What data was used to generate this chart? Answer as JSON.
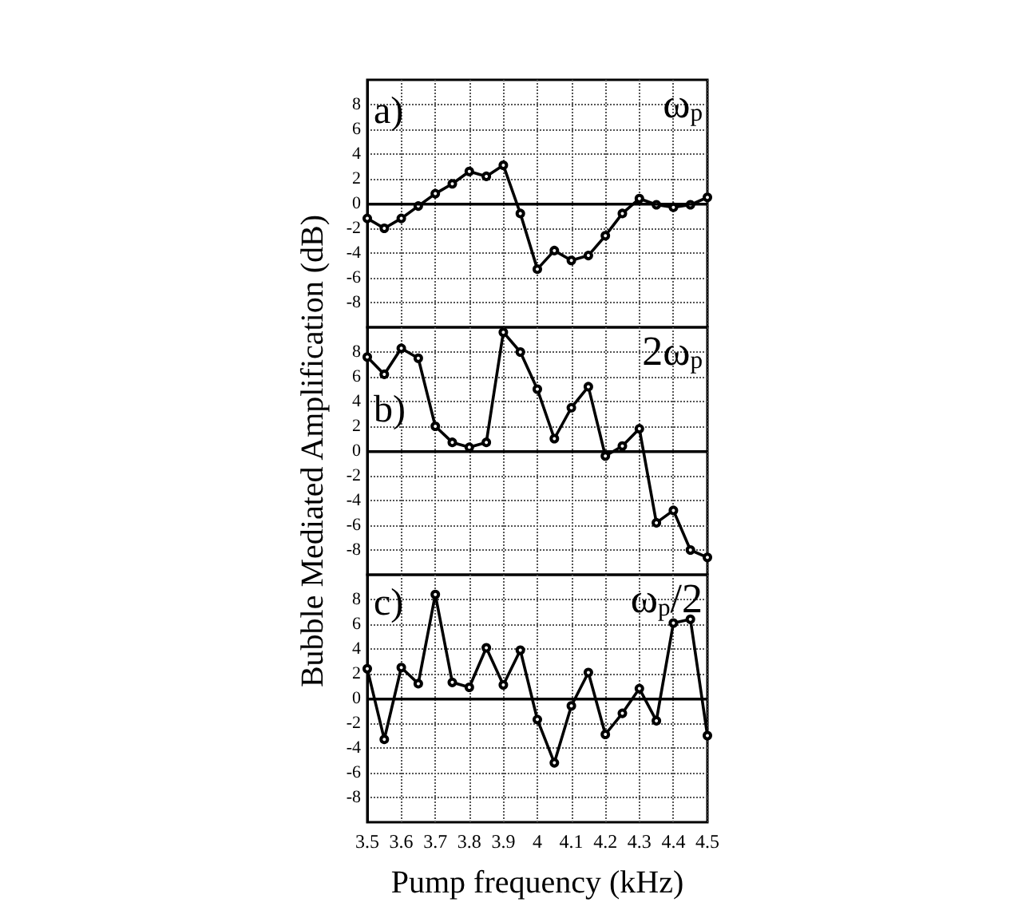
{
  "chart_data": [
    {
      "type": "line",
      "annotations": [
        "a)",
        "ω$_{p}$"
      ],
      "x": [
        3.5,
        3.55,
        3.6,
        3.65,
        3.7,
        3.75,
        3.8,
        3.85,
        3.9,
        3.95,
        4.0,
        4.05,
        4.1,
        4.15,
        4.2,
        4.25,
        4.3,
        4.35,
        4.4,
        4.45,
        4.5
      ],
      "series": [
        {
          "color": "#000000",
          "values": [
            -1.2,
            -2.0,
            -1.2,
            -0.2,
            0.8,
            1.6,
            2.6,
            2.2,
            3.1,
            -0.8,
            -5.3,
            -3.8,
            -4.6,
            -4.2,
            -2.6,
            -0.8,
            0.4,
            -0.1,
            -0.3,
            -0.1,
            0.5
          ]
        }
      ],
      "xlim": [
        3.5,
        4.5
      ],
      "xticks": [
        3.5,
        3.6,
        3.7,
        3.8,
        3.9,
        4.0,
        4.1,
        4.2,
        4.3,
        4.4,
        4.5
      ],
      "ylim": [
        -10,
        10
      ],
      "yticks": [
        -8,
        -6,
        -4,
        -2,
        0,
        2,
        4,
        6,
        8
      ],
      "tick_labels": "y",
      "grid": true,
      "marker": "circle",
      "line_style": "solid",
      "ref_lines": [
        {
          "axis": "y",
          "value": 0,
          "color": "#000000"
        }
      ]
    },
    {
      "type": "line",
      "ylabel": "Bubble Mediated Amplification (dB)",
      "annotations": [
        "b)",
        "2ω$_{p}$"
      ],
      "x": [
        3.5,
        3.55,
        3.6,
        3.65,
        3.7,
        3.75,
        3.8,
        3.85,
        3.9,
        3.95,
        4.0,
        4.05,
        4.1,
        4.15,
        4.2,
        4.25,
        4.3,
        4.35,
        4.4,
        4.45,
        4.5
      ],
      "series": [
        {
          "color": "#000000",
          "values": [
            7.6,
            6.2,
            8.3,
            7.5,
            2.0,
            0.7,
            0.3,
            0.7,
            9.6,
            8.0,
            5.0,
            1.0,
            3.5,
            5.2,
            -0.4,
            0.4,
            1.8,
            -5.8,
            -4.8,
            -8.0,
            -8.6
          ]
        }
      ],
      "xlim": [
        3.5,
        4.5
      ],
      "xticks": [
        3.5,
        3.6,
        3.7,
        3.8,
        3.9,
        4.0,
        4.1,
        4.2,
        4.3,
        4.4,
        4.5
      ],
      "ylim": [
        -10,
        10
      ],
      "yticks": [
        -8,
        -6,
        -4,
        -2,
        0,
        2,
        4,
        6,
        8
      ],
      "tick_labels": "y",
      "grid": true,
      "marker": "circle",
      "line_style": "solid",
      "ref_lines": [
        {
          "axis": "y",
          "value": 0,
          "color": "#000000"
        }
      ]
    },
    {
      "type": "line",
      "xlabel": "Pump frequency (kHz)",
      "annotations": [
        "c)",
        "ω$_{p}$/2"
      ],
      "x": [
        3.5,
        3.55,
        3.6,
        3.65,
        3.7,
        3.75,
        3.8,
        3.85,
        3.9,
        3.95,
        4.0,
        4.05,
        4.1,
        4.15,
        4.2,
        4.25,
        4.3,
        4.35,
        4.4,
        4.45,
        4.5
      ],
      "series": [
        {
          "color": "#000000",
          "values": [
            2.4,
            -3.3,
            2.5,
            1.2,
            8.4,
            1.3,
            0.9,
            4.1,
            1.1,
            3.9,
            -1.7,
            -5.2,
            -0.6,
            2.1,
            -2.9,
            -1.2,
            0.8,
            -1.8,
            6.1,
            6.4,
            -3.0
          ]
        }
      ],
      "xlim": [
        3.5,
        4.5
      ],
      "xticks": [
        3.5,
        3.6,
        3.7,
        3.8,
        3.9,
        4.0,
        4.1,
        4.2,
        4.3,
        4.4,
        4.5
      ],
      "ylim": [
        -10,
        10
      ],
      "yticks": [
        -8,
        -6,
        -4,
        -2,
        0,
        2,
        4,
        6,
        8
      ],
      "grid": true,
      "marker": "circle",
      "line_style": "solid",
      "ref_lines": [
        {
          "axis": "y",
          "value": 0,
          "color": "#000000"
        }
      ]
    }
  ]
}
